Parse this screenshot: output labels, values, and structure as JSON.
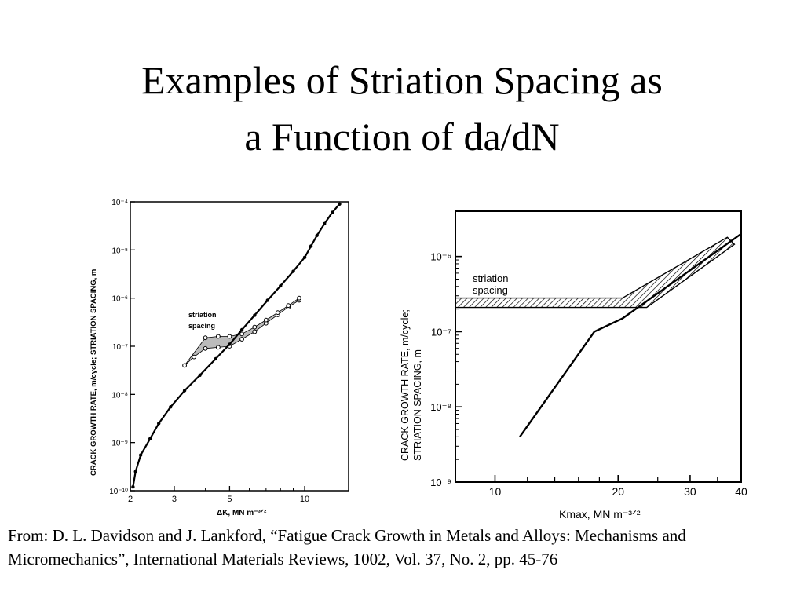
{
  "slide": {
    "title_line1": "Examples of Striation Spacing as",
    "title_line2": "a Function of da/dN",
    "citation": "From: D. L. Davidson and J. Lankford, “Fatigue Crack Growth in Metals and Alloys: Mechanisms and Micromechanics”, International Materials Reviews, 1002, Vol. 37, No. 2, pp. 45-76"
  },
  "chart_data": [
    {
      "type": "scatter",
      "xscale": "log",
      "yscale": "log",
      "xlabel": "ΔK, MN m⁻³ᐟ²",
      "ylabel": "CRACK GROWTH RATE, m/cycle; STRIATION SPACING, m",
      "xlim": [
        2,
        15
      ],
      "ylim": [
        1e-10,
        0.0001
      ],
      "x_ticks": [
        2,
        3,
        5,
        10
      ],
      "x_tick_labels": [
        "2",
        "3",
        "5",
        "10"
      ],
      "y_ticks": [
        1e-10,
        1e-09,
        1e-08,
        1e-07,
        1e-06,
        1e-05,
        0.0001
      ],
      "y_tick_labels": [
        "10⁻¹⁰",
        "10⁻⁹",
        "10⁻⁸",
        "10⁻⁷",
        "10⁻⁶",
        "10⁻⁵",
        "10⁻⁴"
      ],
      "annotations": [
        {
          "text": "striation",
          "x": 4.5,
          "y": 1.9e-07
        },
        {
          "text": "spacing",
          "x": 4.5,
          "y": 1.1e-07
        }
      ],
      "series": [
        {
          "role": "crack growth rate",
          "style": "line+dots",
          "x": [
            2.05,
            2.1,
            2.2,
            2.4,
            2.6,
            2.9,
            3.3,
            3.8,
            4.4,
            5.0,
            5.6,
            6.3,
            7.1,
            8.0,
            9.0,
            10.0,
            10.6,
            11.2,
            12.0,
            12.9,
            13.8
          ],
          "y": [
            1.2e-10,
            2.5e-10,
            5.5e-10,
            1.2e-09,
            2.5e-09,
            5.5e-09,
            1.2e-08,
            2.5e-08,
            5.5e-08,
            1.1e-07,
            2.2e-07,
            4.4e-07,
            9e-07,
            1.8e-06,
            3.6e-06,
            7e-06,
            1.2e-05,
            2e-05,
            3.5e-05,
            6e-05,
            9e-05
          ]
        },
        {
          "role": "striation spacing lower edge",
          "style": "open circles",
          "x": [
            3.3,
            3.6,
            4.0,
            4.5,
            5.0,
            5.6,
            6.3,
            7.0,
            7.8,
            8.6,
            9.5
          ],
          "y": [
            4e-08,
            6e-08,
            9e-08,
            9.5e-08,
            1e-07,
            1.4e-07,
            2e-07,
            3e-07,
            4.5e-07,
            6.5e-07,
            9e-07
          ]
        },
        {
          "role": "striation spacing upper edge",
          "style": "open circles",
          "x": [
            4.0,
            4.5,
            5.0,
            5.6,
            6.3,
            7.0,
            7.8,
            8.6,
            9.5
          ],
          "y": [
            1.5e-07,
            1.6e-07,
            1.6e-07,
            1.8e-07,
            2.5e-07,
            3.5e-07,
            5e-07,
            7e-07,
            1e-06
          ]
        }
      ]
    },
    {
      "type": "line",
      "xscale": "log",
      "yscale": "log",
      "xlabel": "Kmax, MN m⁻³ᐟ²",
      "ylabel": "CRACK GROWTH RATE, m/cycle; STRIATION SPACING, m",
      "xlim": [
        8,
        40
      ],
      "ylim": [
        1e-09,
        4e-06
      ],
      "x_ticks": [
        10,
        20,
        30,
        40
      ],
      "x_tick_labels": [
        "10",
        "20",
        "30",
        "40"
      ],
      "y_ticks": [
        1e-09,
        1e-08,
        1e-07,
        1e-06
      ],
      "y_tick_labels": [
        "10⁻⁹",
        "10⁻⁸",
        "10⁻⁷",
        "10⁻⁶"
      ],
      "annotations": [
        {
          "text": "striation",
          "x": 9.5,
          "y": 5.5e-07
        },
        {
          "text": "spacing",
          "x": 9.5,
          "y": 3.8e-07
        }
      ],
      "bands": [
        {
          "role": "striation spacing (hatched band)",
          "x": [
            8,
            20.5,
            37,
            38.5,
            23.5,
            8
          ],
          "y": [
            2.8e-07,
            2.8e-07,
            1.8e-06,
            1.45e-06,
            2.1e-07,
            2.1e-07
          ]
        }
      ],
      "series": [
        {
          "role": "crack growth rate",
          "style": "line",
          "x": [
            11.5,
            17.5,
            20.5,
            40
          ],
          "y": [
            4e-09,
            1e-07,
            1.5e-07,
            2e-06
          ]
        }
      ]
    }
  ]
}
